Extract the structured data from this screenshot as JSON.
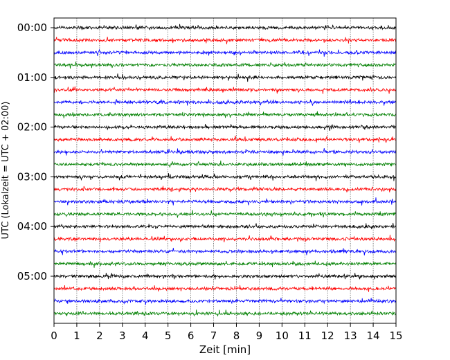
{
  "chart_data": {
    "type": "line",
    "title": "",
    "xlabel": "Zeit  [min]",
    "ylabel": "UTC (Lokalzeit = UTC + 02:00)",
    "xlim": [
      0,
      15
    ],
    "x_ticks": [
      "0",
      "1",
      "2",
      "3",
      "4",
      "5",
      "6",
      "7",
      "8",
      "9",
      "10",
      "11",
      "12",
      "13",
      "14",
      "15"
    ],
    "y_ticks": [
      "00:00",
      "01:00",
      "02:00",
      "03:00",
      "04:00",
      "05:00"
    ],
    "grid": "vertical-dotted",
    "trace_interval_minutes": 15,
    "trace_colors": [
      "#000000",
      "#ff0000",
      "#0000ff",
      "#008000"
    ],
    "trace_start_times": [
      "00:00",
      "00:15",
      "00:30",
      "00:45",
      "01:00",
      "01:15",
      "01:30",
      "01:45",
      "02:00",
      "02:15",
      "02:30",
      "02:45",
      "03:00",
      "03:15",
      "03:30",
      "03:45",
      "04:00",
      "04:15",
      "04:30",
      "04:45",
      "05:00",
      "05:15",
      "05:30",
      "05:45"
    ]
  }
}
